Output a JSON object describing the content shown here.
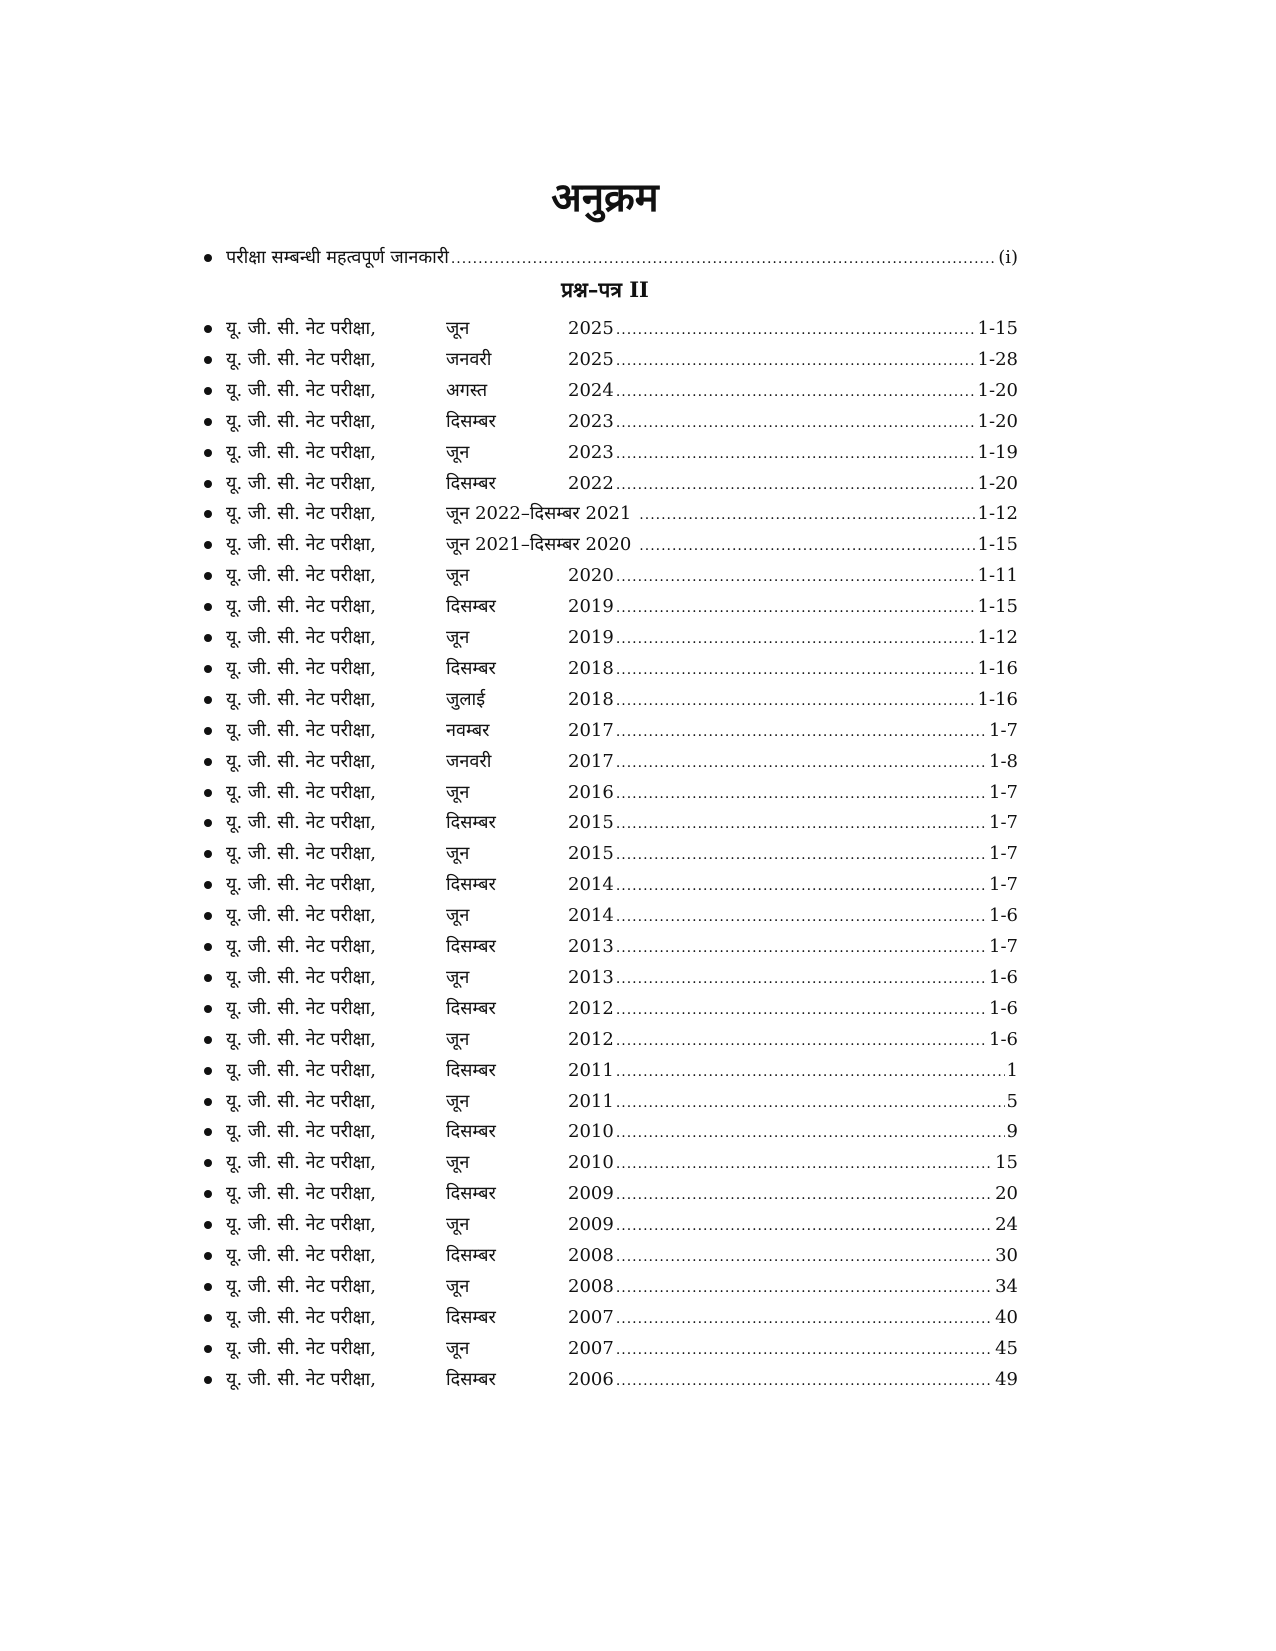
{
  "title": "अनुक्रम",
  "intro": {
    "label": "परीक्षा सम्बन्धी महत्वपूर्ण जानकारी",
    "page": "(i)"
  },
  "section_heading": "प्रश्न–पत्र II",
  "entries": [
    {
      "label": "यू. जी. सी. नेट परीक्षा,",
      "month": "जून",
      "year": "2025",
      "page": "1-15"
    },
    {
      "label": "यू. जी. सी. नेट परीक्षा,",
      "month": "जनवरी",
      "year": "2025",
      "page": "1-28"
    },
    {
      "label": "यू. जी. सी. नेट परीक्षा,",
      "month": "अगस्त",
      "year": "2024",
      "page": "1-20"
    },
    {
      "label": "यू. जी. सी. नेट परीक्षा,",
      "month": "दिसम्बर",
      "year": "2023",
      "page": "1-20"
    },
    {
      "label": "यू. जी. सी. नेट परीक्षा,",
      "month": "जून",
      "year": "2023",
      "page": "1-19"
    },
    {
      "label": "यू. जी. सी. नेट परीक्षा,",
      "month": "दिसम्बर",
      "year": "2022",
      "page": "1-20"
    },
    {
      "label": "यू. जी. सी. नेट परीक्षा,",
      "month": "जून 2022–दिसम्बर 2021",
      "year": "",
      "page": "1-12"
    },
    {
      "label": "यू. जी. सी. नेट परीक्षा,",
      "month": "जून 2021–दिसम्बर 2020",
      "year": "",
      "page": "1-15"
    },
    {
      "label": "यू. जी. सी. नेट परीक्षा,",
      "month": "जून",
      "year": "2020",
      "page": "1-11"
    },
    {
      "label": "यू. जी. सी. नेट परीक्षा,",
      "month": "दिसम्बर",
      "year": "2019",
      "page": "1-15"
    },
    {
      "label": "यू. जी. सी. नेट परीक्षा,",
      "month": "जून",
      "year": "2019",
      "page": "1-12"
    },
    {
      "label": "यू. जी. सी. नेट परीक्षा,",
      "month": "दिसम्बर",
      "year": "2018",
      "page": "1-16"
    },
    {
      "label": "यू. जी. सी. नेट परीक्षा,",
      "month": "जुलाई",
      "year": "2018",
      "page": "1-16"
    },
    {
      "label": "यू. जी. सी. नेट परीक्षा,",
      "month": "नवम्बर",
      "year": "2017",
      "page": "1-7"
    },
    {
      "label": "यू. जी. सी. नेट परीक्षा,",
      "month": "जनवरी",
      "year": "2017",
      "page": "1-8"
    },
    {
      "label": "यू. जी. सी. नेट परीक्षा,",
      "month": "जून",
      "year": "2016",
      "page": "1-7"
    },
    {
      "label": "यू. जी. सी. नेट परीक्षा,",
      "month": "दिसम्बर",
      "year": "2015",
      "page": "1-7"
    },
    {
      "label": "यू. जी. सी. नेट परीक्षा,",
      "month": "जून",
      "year": "2015",
      "page": "1-7"
    },
    {
      "label": "यू. जी. सी. नेट परीक्षा,",
      "month": "दिसम्बर",
      "year": "2014",
      "page": "1-7"
    },
    {
      "label": "यू. जी. सी. नेट परीक्षा,",
      "month": "जून",
      "year": "2014",
      "page": "1-6"
    },
    {
      "label": "यू. जी. सी. नेट परीक्षा,",
      "month": "दिसम्बर",
      "year": "2013",
      "page": "1-7"
    },
    {
      "label": "यू. जी. सी. नेट परीक्षा,",
      "month": "जून",
      "year": "2013",
      "page": "1-6"
    },
    {
      "label": "यू. जी. सी. नेट परीक्षा,",
      "month": "दिसम्बर",
      "year": "2012",
      "page": "1-6"
    },
    {
      "label": "यू. जी. सी. नेट परीक्षा,",
      "month": "जून",
      "year": "2012",
      "page": "1-6"
    },
    {
      "label": "यू. जी. सी. नेट परीक्षा,",
      "month": "दिसम्बर",
      "year": "2011",
      "page": "1"
    },
    {
      "label": "यू. जी. सी. नेट परीक्षा,",
      "month": "जून",
      "year": "2011",
      "page": "5"
    },
    {
      "label": "यू. जी. सी. नेट परीक्षा,",
      "month": "दिसम्बर",
      "year": "2010",
      "page": "9"
    },
    {
      "label": "यू. जी. सी. नेट परीक्षा,",
      "month": "जून",
      "year": "2010",
      "page": "15"
    },
    {
      "label": "यू. जी. सी. नेट परीक्षा,",
      "month": "दिसम्बर",
      "year": "2009",
      "page": "20"
    },
    {
      "label": "यू. जी. सी. नेट परीक्षा,",
      "month": "जून",
      "year": "2009",
      "page": "24"
    },
    {
      "label": "यू. जी. सी. नेट परीक्षा,",
      "month": "दिसम्बर",
      "year": "2008",
      "page": "30"
    },
    {
      "label": "यू. जी. सी. नेट परीक्षा,",
      "month": "जून",
      "year": "2008",
      "page": "34"
    },
    {
      "label": "यू. जी. सी. नेट परीक्षा,",
      "month": "दिसम्बर",
      "year": "2007",
      "page": "40"
    },
    {
      "label": "यू. जी. सी. नेट परीक्षा,",
      "month": "जून",
      "year": "2007",
      "page": "45"
    },
    {
      "label": "यू. जी. सी. नेट परीक्षा,",
      "month": "दिसम्बर",
      "year": "2006",
      "page": "49"
    }
  ]
}
